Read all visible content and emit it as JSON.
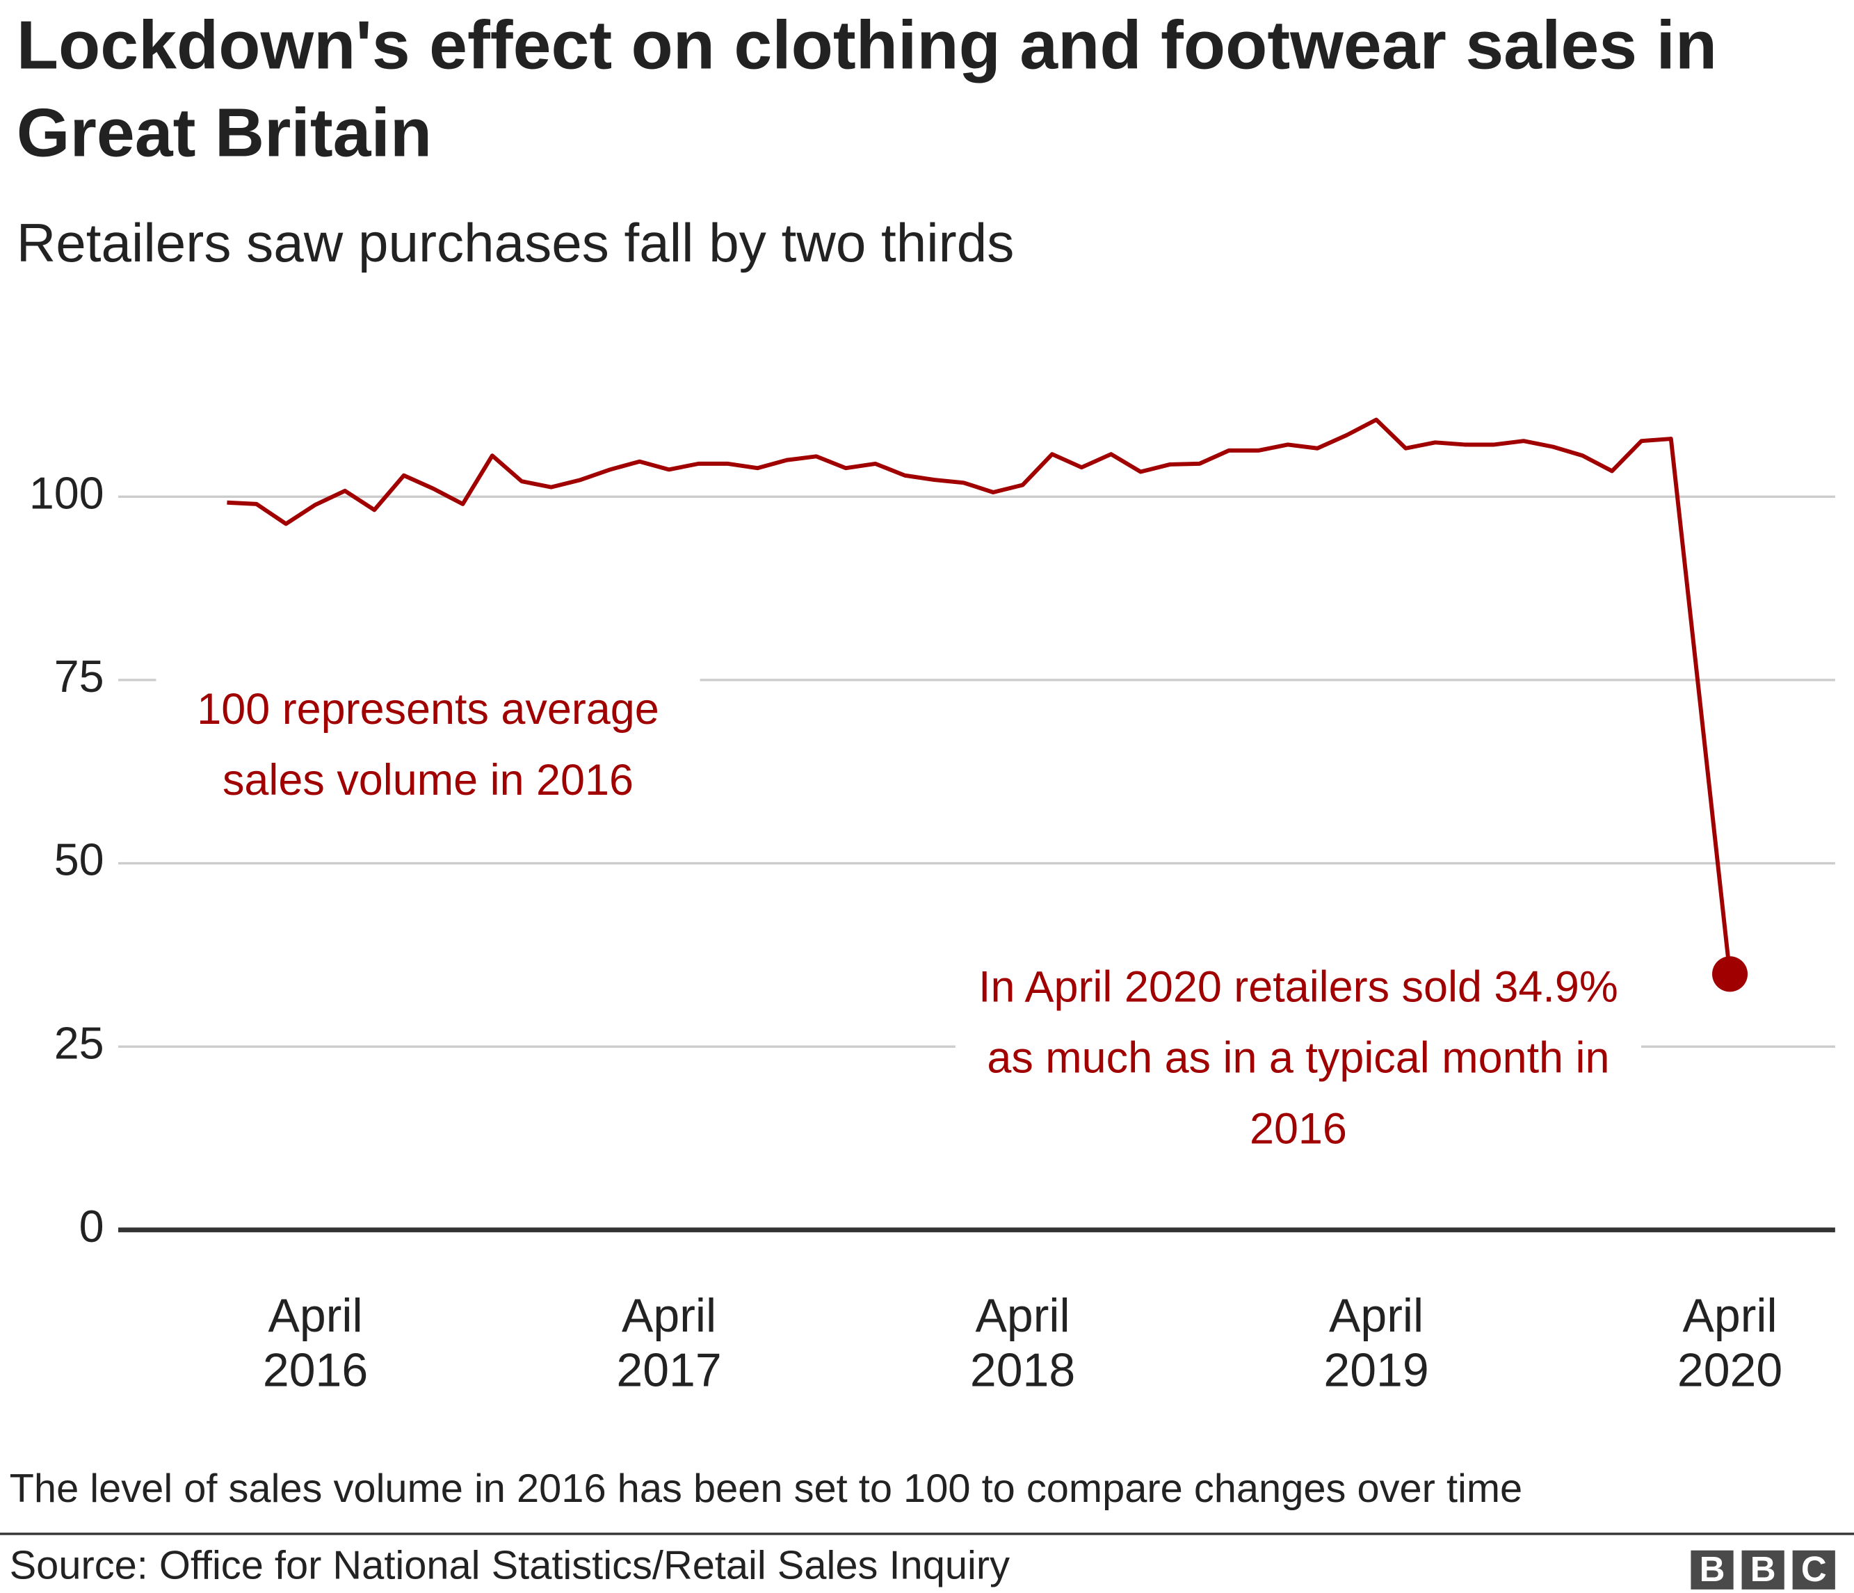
{
  "chart_data": {
    "type": "line",
    "title": "Lockdown's effect on clothing and footwear sales in Great Britain",
    "subtitle": "Retailers saw purchases fall by two thirds",
    "annotations": [
      "100 represents average sales volume in 2016",
      "In April 2020 retailers sold 34.9% as much as in a typical month in 2016"
    ],
    "footnote": "The level of sales volume in 2016 has been set to 100 to compare changes over time",
    "source": "Source: Office for National Statistics/Retail Sales Inquiry",
    "logo": [
      "B",
      "B",
      "C"
    ],
    "x": [
      "2016-01",
      "2016-02",
      "2016-03",
      "2016-04",
      "2016-05",
      "2016-06",
      "2016-07",
      "2016-08",
      "2016-09",
      "2016-10",
      "2016-11",
      "2016-12",
      "2017-01",
      "2017-02",
      "2017-03",
      "2017-04",
      "2017-05",
      "2017-06",
      "2017-07",
      "2017-08",
      "2017-09",
      "2017-10",
      "2017-11",
      "2017-12",
      "2018-01",
      "2018-02",
      "2018-03",
      "2018-04",
      "2018-05",
      "2018-06",
      "2018-07",
      "2018-08",
      "2018-09",
      "2018-10",
      "2018-11",
      "2018-12",
      "2019-01",
      "2019-02",
      "2019-03",
      "2019-04",
      "2019-05",
      "2019-06",
      "2019-07",
      "2019-08",
      "2019-09",
      "2019-10",
      "2019-11",
      "2019-12",
      "2020-01",
      "2020-02",
      "2020-03",
      "2020-04"
    ],
    "series": [
      {
        "color": "#a00000",
        "values": [
          99.2,
          99.0,
          96.3,
          98.9,
          100.8,
          98.2,
          102.9,
          101.1,
          99.0,
          105.6,
          102.1,
          101.3,
          102.3,
          103.7,
          104.8,
          103.7,
          104.5,
          104.5,
          103.9,
          105.0,
          105.5,
          103.9,
          104.5,
          102.9,
          102.3,
          101.9,
          100.6,
          101.6,
          105.8,
          104.0,
          105.8,
          103.4,
          104.4,
          104.5,
          106.3,
          106.3,
          107.1,
          106.6,
          108.4,
          110.5,
          106.6,
          107.4,
          107.1,
          107.1,
          107.6,
          106.8,
          105.6,
          103.5,
          107.6,
          107.9,
          71.5,
          34.9
        ]
      }
    ],
    "xlim": [
      "2016-01",
      "2020-04"
    ],
    "xticks": [
      {
        "value": "2016-04",
        "label": "April 2016"
      },
      {
        "value": "2017-04",
        "label": "April 2017"
      },
      {
        "value": "2018-04",
        "label": "April 2018"
      },
      {
        "value": "2019-04",
        "label": "April 2019"
      },
      {
        "value": "2020-04",
        "label": "April 2020"
      }
    ],
    "ylim": [
      0,
      110
    ],
    "yticks": [
      0,
      25,
      50,
      75,
      100
    ],
    "grid": true
  }
}
